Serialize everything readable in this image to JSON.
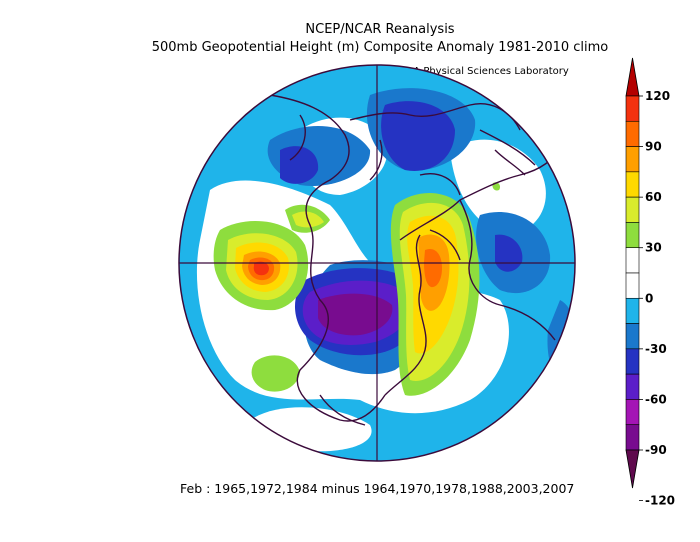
{
  "title": "NCEP/NCAR Reanalysis",
  "subtitle": "500mb Geopotential Height (m) Composite Anomaly 1981-2010 climo",
  "credit": "NOAA Physical Sciences Laboratory",
  "footer": "Feb : 1965,1972,1984 minus 1964,1970,1978,1988,2003,2007",
  "colorbar": {
    "labels": [
      "120",
      "90",
      "60",
      "30",
      "0",
      "-30",
      "-60",
      "-90",
      "-120"
    ],
    "colors": [
      "#5f0a4d",
      "#780c8f",
      "#a415b5",
      "#5b1ec9",
      "#2533c2",
      "#1a78cc",
      "#1fb4ea",
      "#ffffff",
      "#ffffff",
      "#8edd3e",
      "#d9ec2c",
      "#ffd900",
      "#ff9f00",
      "#ff6b00",
      "#f4320f",
      "#b40000"
    ]
  },
  "colors": {
    "map_border": "#3b0b3b",
    "ocean_anomaly_base": "#1fb4ea"
  }
}
